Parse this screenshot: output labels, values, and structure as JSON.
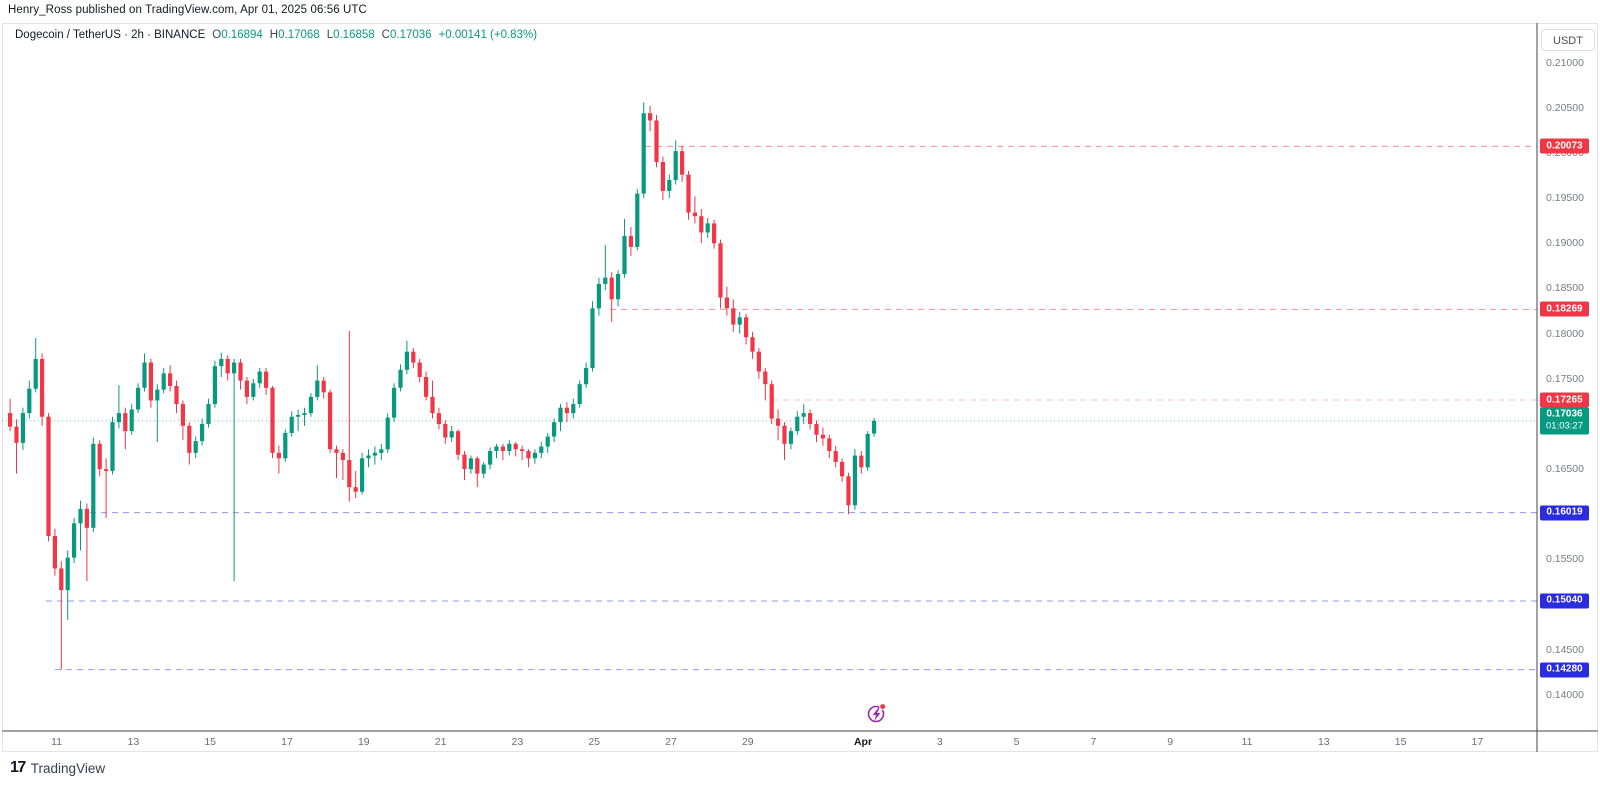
{
  "attribution": "Henry_Ross published on TradingView.com, Apr 01, 2025 06:56 UTC",
  "legend": {
    "title": "Dogecoin / TetherUS · 2h · BINANCE",
    "o_label": "O",
    "o_value": "0.16894",
    "h_label": "H",
    "h_value": "0.17068",
    "l_label": "L",
    "l_value": "0.16858",
    "c_label": "C",
    "c_value": "0.17036",
    "change": "+0.00141 (+0.83%)"
  },
  "price_axis": {
    "currency": "USDT",
    "ticks": [
      "0.21000",
      "0.20500",
      "0.20000",
      "0.19500",
      "0.19000",
      "0.18500",
      "0.18000",
      "0.17500",
      "0.17000",
      "0.16500",
      "0.16000",
      "0.15500",
      "0.15000",
      "0.14500",
      "0.14000"
    ]
  },
  "time_axis": {
    "labels": [
      "11",
      "13",
      "15",
      "17",
      "19",
      "21",
      "23",
      "25",
      "27",
      "29",
      "Apr",
      "3",
      "5",
      "7",
      "9",
      "11",
      "13",
      "15",
      "17"
    ],
    "emphasized": "Apr"
  },
  "current_price": {
    "label": "0.17036",
    "value": 0.17036,
    "countdown": "01:03:27",
    "color": "#089981"
  },
  "levels": [
    {
      "label": "0.20073",
      "value": 0.20073,
      "color": "#f23645",
      "dash_opacity": 0.55,
      "x_start": 645
    },
    {
      "label": "0.18269",
      "value": 0.18269,
      "color": "#f23645",
      "dash_opacity": 0.55,
      "x_start": 610
    },
    {
      "label": "0.17265",
      "value": 0.17265,
      "color": "#f23645",
      "dash_opacity": 0.32,
      "x_start": 772
    },
    {
      "label": "0.16019",
      "value": 0.16019,
      "color": "#2b2be0",
      "dash_opacity": 0.5,
      "x_start": 90
    },
    {
      "label": "0.15040",
      "value": 0.1504,
      "color": "#2b2be0",
      "dash_opacity": 0.5,
      "x_start": 46
    },
    {
      "label": "0.14280",
      "value": 0.1428,
      "color": "#2b2be0",
      "dash_opacity": 0.5,
      "x_start": 55
    }
  ],
  "event_marker": {
    "name": "lightning-event",
    "color": "#9c27b0",
    "dot_color": "#f23645"
  },
  "footer": {
    "logo_mark": "17",
    "brand": "TradingView"
  },
  "chart_data": {
    "type": "candlestick",
    "title": "Dogecoin / TetherUS",
    "interval": "2h",
    "exchange": "BINANCE",
    "quote": "USDT",
    "ylim": [
      0.14,
      0.21
    ],
    "x_range": "Mar 10 2025 - Apr 1 2025",
    "up_color": "#089981",
    "down_color": "#f23645",
    "last": {
      "o": 0.16894,
      "h": 0.17068,
      "l": 0.16858,
      "c": 0.17036,
      "change": "+0.00141 (+0.83%)"
    },
    "candles": [
      [
        0.1712,
        0.1728,
        0.1692,
        0.1697
      ],
      [
        0.1697,
        0.1705,
        0.1645,
        0.1679
      ],
      [
        0.1679,
        0.1718,
        0.1671,
        0.1712
      ],
      [
        0.1712,
        0.1748,
        0.1706,
        0.1739
      ],
      [
        0.1739,
        0.1795,
        0.1735,
        0.1772
      ],
      [
        0.1772,
        0.1778,
        0.1698,
        0.1708
      ],
      [
        0.1708,
        0.1712,
        0.157,
        0.1576
      ],
      [
        0.1576,
        0.1584,
        0.1532,
        0.154
      ],
      [
        0.154,
        0.1548,
        0.1428,
        0.1516
      ],
      [
        0.1516,
        0.156,
        0.1483,
        0.1552
      ],
      [
        0.1552,
        0.1596,
        0.1546,
        0.159
      ],
      [
        0.159,
        0.1615,
        0.156,
        0.1606
      ],
      [
        0.1606,
        0.1612,
        0.1526,
        0.1585
      ],
      [
        0.1585,
        0.1685,
        0.158,
        0.1678
      ],
      [
        0.1678,
        0.1682,
        0.1642,
        0.165
      ],
      [
        0.165,
        0.1662,
        0.1596,
        0.1648
      ],
      [
        0.1648,
        0.1708,
        0.1644,
        0.1702
      ],
      [
        0.1702,
        0.1743,
        0.1695,
        0.1712
      ],
      [
        0.1712,
        0.1718,
        0.1672,
        0.1692
      ],
      [
        0.1692,
        0.1722,
        0.1688,
        0.1716
      ],
      [
        0.1716,
        0.1745,
        0.1712,
        0.174
      ],
      [
        0.174,
        0.1778,
        0.1736,
        0.1768
      ],
      [
        0.1768,
        0.1772,
        0.1718,
        0.1726
      ],
      [
        0.1726,
        0.1744,
        0.168,
        0.1738
      ],
      [
        0.1738,
        0.1762,
        0.1734,
        0.1756
      ],
      [
        0.1756,
        0.1765,
        0.1736,
        0.1742
      ],
      [
        0.1742,
        0.1748,
        0.1712,
        0.1722
      ],
      [
        0.1722,
        0.1726,
        0.1682,
        0.1698
      ],
      [
        0.1698,
        0.1702,
        0.1655,
        0.1668
      ],
      [
        0.1668,
        0.1686,
        0.1662,
        0.1681
      ],
      [
        0.1681,
        0.1706,
        0.1676,
        0.17
      ],
      [
        0.17,
        0.1728,
        0.1696,
        0.1722
      ],
      [
        0.1722,
        0.177,
        0.1718,
        0.1764
      ],
      [
        0.1764,
        0.1779,
        0.1752,
        0.1772
      ],
      [
        0.1772,
        0.1776,
        0.1748,
        0.1756
      ],
      [
        0.1756,
        0.1772,
        0.1526,
        0.1768
      ],
      [
        0.1768,
        0.1772,
        0.1738,
        0.1748
      ],
      [
        0.1748,
        0.1752,
        0.1722,
        0.173
      ],
      [
        0.173,
        0.175,
        0.1726,
        0.1745
      ],
      [
        0.1745,
        0.1762,
        0.174,
        0.1758
      ],
      [
        0.1758,
        0.1762,
        0.1732,
        0.174
      ],
      [
        0.174,
        0.1742,
        0.1662,
        0.1668
      ],
      [
        0.1668,
        0.1676,
        0.1645,
        0.1662
      ],
      [
        0.1662,
        0.1694,
        0.1658,
        0.169
      ],
      [
        0.169,
        0.1714,
        0.1686,
        0.1708
      ],
      [
        0.1708,
        0.1716,
        0.1692,
        0.171
      ],
      [
        0.171,
        0.1718,
        0.1698,
        0.1712
      ],
      [
        0.1712,
        0.1734,
        0.1708,
        0.173
      ],
      [
        0.173,
        0.1765,
        0.1726,
        0.1748
      ],
      [
        0.1748,
        0.1752,
        0.1728,
        0.1735
      ],
      [
        0.1735,
        0.1738,
        0.1668,
        0.1672
      ],
      [
        0.1672,
        0.1676,
        0.164,
        0.1668
      ],
      [
        0.1668,
        0.1672,
        0.1638,
        0.166
      ],
      [
        0.166,
        0.1803,
        0.1614,
        0.163
      ],
      [
        0.163,
        0.1648,
        0.1618,
        0.1625
      ],
      [
        0.1625,
        0.1668,
        0.1622,
        0.1662
      ],
      [
        0.1662,
        0.1672,
        0.1652,
        0.1665
      ],
      [
        0.1665,
        0.1675,
        0.1655,
        0.1668
      ],
      [
        0.1668,
        0.1678,
        0.166,
        0.1672
      ],
      [
        0.1672,
        0.1712,
        0.1668,
        0.1707
      ],
      [
        0.1707,
        0.1745,
        0.1702,
        0.174
      ],
      [
        0.174,
        0.1766,
        0.1736,
        0.176
      ],
      [
        0.176,
        0.1792,
        0.1755,
        0.178
      ],
      [
        0.178,
        0.1784,
        0.1762,
        0.1768
      ],
      [
        0.1768,
        0.1772,
        0.1746,
        0.1752
      ],
      [
        0.1752,
        0.1758,
        0.1726,
        0.173
      ],
      [
        0.173,
        0.1748,
        0.1706,
        0.1712
      ],
      [
        0.1712,
        0.1718,
        0.1694,
        0.17
      ],
      [
        0.17,
        0.1704,
        0.1678,
        0.1685
      ],
      [
        0.1685,
        0.1698,
        0.168,
        0.1692
      ],
      [
        0.1692,
        0.1694,
        0.166,
        0.1666
      ],
      [
        0.1666,
        0.167,
        0.1638,
        0.165
      ],
      [
        0.165,
        0.1665,
        0.1645,
        0.1662
      ],
      [
        0.1662,
        0.1664,
        0.163,
        0.1645
      ],
      [
        0.1645,
        0.1658,
        0.164,
        0.1655
      ],
      [
        0.1655,
        0.1674,
        0.165,
        0.167
      ],
      [
        0.167,
        0.1678,
        0.1662,
        0.1675
      ],
      [
        0.1675,
        0.1678,
        0.166,
        0.167
      ],
      [
        0.167,
        0.1682,
        0.1665,
        0.1678
      ],
      [
        0.1678,
        0.168,
        0.1664,
        0.1672
      ],
      [
        0.1672,
        0.1676,
        0.166,
        0.167
      ],
      [
        0.167,
        0.1672,
        0.1652,
        0.1662
      ],
      [
        0.1662,
        0.1672,
        0.1656,
        0.1668
      ],
      [
        0.1668,
        0.168,
        0.1662,
        0.1675
      ],
      [
        0.1675,
        0.169,
        0.1668,
        0.1686
      ],
      [
        0.1686,
        0.1706,
        0.168,
        0.1702
      ],
      [
        0.1702,
        0.1722,
        0.1692,
        0.1718
      ],
      [
        0.1718,
        0.1724,
        0.1702,
        0.1712
      ],
      [
        0.1712,
        0.1728,
        0.1706,
        0.1722
      ],
      [
        0.1722,
        0.1748,
        0.1718,
        0.1744
      ],
      [
        0.1744,
        0.1768,
        0.174,
        0.1762
      ],
      [
        0.1762,
        0.1836,
        0.1758,
        0.1828
      ],
      [
        0.1828,
        0.1862,
        0.182,
        0.1855
      ],
      [
        0.1855,
        0.1898,
        0.1848,
        0.1862
      ],
      [
        0.1862,
        0.1868,
        0.1813,
        0.1838
      ],
      [
        0.1838,
        0.187,
        0.183,
        0.1866
      ],
      [
        0.1866,
        0.1927,
        0.1862,
        0.1908
      ],
      [
        0.1908,
        0.1918,
        0.1886,
        0.1896
      ],
      [
        0.1896,
        0.196,
        0.1892,
        0.1955
      ],
      [
        0.1955,
        0.2056,
        0.195,
        0.2044
      ],
      [
        0.2044,
        0.2052,
        0.2024,
        0.2036
      ],
      [
        0.2036,
        0.2042,
        0.1984,
        0.199
      ],
      [
        0.199,
        0.1996,
        0.1948,
        0.1958
      ],
      [
        0.1958,
        0.1976,
        0.195,
        0.197
      ],
      [
        0.197,
        0.2014,
        0.1965,
        0.2002
      ],
      [
        0.2002,
        0.2008,
        0.1968,
        0.1976
      ],
      [
        0.1976,
        0.198,
        0.1926,
        0.1934
      ],
      [
        0.1934,
        0.1952,
        0.1922,
        0.193
      ],
      [
        0.193,
        0.1938,
        0.19,
        0.1912
      ],
      [
        0.1912,
        0.1928,
        0.1906,
        0.1922
      ],
      [
        0.1922,
        0.1926,
        0.1894,
        0.19
      ],
      [
        0.19,
        0.1904,
        0.1828,
        0.184
      ],
      [
        0.184,
        0.1852,
        0.182,
        0.1828
      ],
      [
        0.1828,
        0.1838,
        0.1802,
        0.181
      ],
      [
        0.181,
        0.1824,
        0.18,
        0.1818
      ],
      [
        0.1818,
        0.1822,
        0.1788,
        0.1796
      ],
      [
        0.1796,
        0.1802,
        0.1772,
        0.178
      ],
      [
        0.178,
        0.1784,
        0.175,
        0.1758
      ],
      [
        0.1758,
        0.1762,
        0.1726,
        0.1744
      ],
      [
        0.1744,
        0.1748,
        0.17,
        0.1706
      ],
      [
        0.1706,
        0.1716,
        0.1682,
        0.1698
      ],
      [
        0.1698,
        0.1702,
        0.166,
        0.1678
      ],
      [
        0.1678,
        0.1696,
        0.1672,
        0.1692
      ],
      [
        0.1692,
        0.1714,
        0.1688,
        0.1708
      ],
      [
        0.1708,
        0.1722,
        0.17,
        0.1712
      ],
      [
        0.1712,
        0.1716,
        0.1694,
        0.17
      ],
      [
        0.17,
        0.1704,
        0.168,
        0.1688
      ],
      [
        0.1688,
        0.1696,
        0.1676,
        0.1684
      ],
      [
        0.1684,
        0.1688,
        0.1662,
        0.167
      ],
      [
        0.167,
        0.1676,
        0.1652,
        0.1658
      ],
      [
        0.1658,
        0.1662,
        0.1636,
        0.1642
      ],
      [
        0.1642,
        0.1646,
        0.16,
        0.161
      ],
      [
        0.161,
        0.1672,
        0.1605,
        0.1665
      ],
      [
        0.1665,
        0.167,
        0.1645,
        0.1652
      ],
      [
        0.1652,
        0.1692,
        0.1648,
        0.1689
      ],
      [
        0.16894,
        0.17068,
        0.16858,
        0.17036
      ]
    ]
  }
}
